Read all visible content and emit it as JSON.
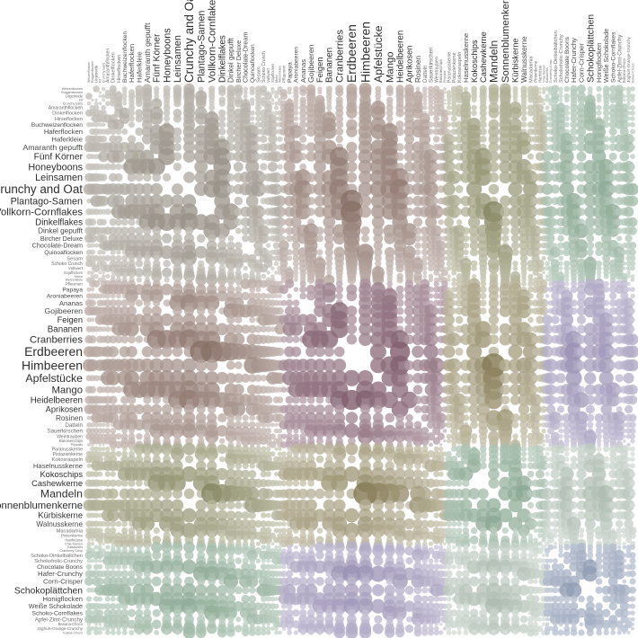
{
  "chart_data": {
    "type": "heatmap",
    "variant": "bubble-cooccurrence-matrix",
    "symmetric": true,
    "title": "",
    "xlabel": "",
    "ylabel": "",
    "axes_note": "identical ingredient list on left rows and rotated top columns; bubble size encodes co-occurrence (weight_i x weight_j); diagonal empty",
    "layout": {
      "background": "#ffffff",
      "plot_origin": [
        97,
        97
      ],
      "plot_size": 609,
      "legend": false,
      "grid": false,
      "label_color_large": "#2e2e2e",
      "label_color_medium": "#4a4a4a",
      "label_color_small": "#6e6e6e"
    },
    "category_colors": {
      "cereal": "#92887a",
      "fruit": "#7e5165",
      "nut": "#8a8a5c",
      "chocolate": "#7689ac"
    },
    "block_colors": {
      "cereal_cereal": "#92887a",
      "cereal_fruit": "#94766b",
      "cereal_nut": "#8a8a5c",
      "cereal_chocolate": "#77a183",
      "fruit_fruit": "#7e5165",
      "fruit_nut": "#978b5e",
      "fruit_chocolate": "#9488b8",
      "nut_nut": "#78a284",
      "nut_chocolate": "#a8bdac",
      "chocolate_chocolate": "#7689ac"
    },
    "ingredients": [
      {
        "label": "Weizenflocken",
        "category": "cereal",
        "weight": 3.5
      },
      {
        "label": "Roggenflocken",
        "category": "cereal",
        "weight": 3.5
      },
      {
        "label": "Urgetreide",
        "category": "cereal",
        "weight": 4.0
      },
      {
        "label": "Fit",
        "category": "cereal",
        "weight": 3.5
      },
      {
        "label": "Crunchy baby",
        "category": "cereal",
        "weight": 3.5
      },
      {
        "label": "Amaranthflocken",
        "category": "cereal",
        "weight": 5.0
      },
      {
        "label": "Dinkelflocken",
        "category": "cereal",
        "weight": 5.5
      },
      {
        "label": "Hirseflocken",
        "category": "cereal",
        "weight": 5.5
      },
      {
        "label": "Buchweizenflocken",
        "category": "cereal",
        "weight": 6.5
      },
      {
        "label": "Haferflocken",
        "category": "cereal",
        "weight": 7.5
      },
      {
        "label": "Haferkleie",
        "category": "cereal",
        "weight": 7.5
      },
      {
        "label": "Amaranth gepufft",
        "category": "cereal",
        "weight": 8.5
      },
      {
        "label": "Fünf Körner",
        "category": "cereal",
        "weight": 10.0
      },
      {
        "label": "Honeyboons",
        "category": "cereal",
        "weight": 10.5
      },
      {
        "label": "Leinsamen",
        "category": "cereal",
        "weight": 10.5
      },
      {
        "label": "Crunchy and Oat",
        "category": "cereal",
        "weight": 13.0
      },
      {
        "label": "Plantago-Samen",
        "category": "cereal",
        "weight": 10.5
      },
      {
        "label": "Vollkorn-Cornflakes",
        "category": "cereal",
        "weight": 11.0
      },
      {
        "label": "Dinkelflakes",
        "category": "cereal",
        "weight": 9.5
      },
      {
        "label": "Dinkel gepufft",
        "category": "cereal",
        "weight": 8.0
      },
      {
        "label": "Bircher Deluxe",
        "category": "cereal",
        "weight": 7.0
      },
      {
        "label": "Chocolate-Dream",
        "category": "cereal",
        "weight": 7.0
      },
      {
        "label": "Quinoaflocken",
        "category": "cereal",
        "weight": 6.5
      },
      {
        "label": "Sesam",
        "category": "cereal",
        "weight": 5.5
      },
      {
        "label": "Schoko Crunch",
        "category": "cereal",
        "weight": 5.0
      },
      {
        "label": "Vollwert",
        "category": "cereal",
        "weight": 4.5
      },
      {
        "label": "Sojaflocken",
        "category": "cereal",
        "weight": 4.0
      },
      {
        "label": "Mohn",
        "category": "cereal",
        "weight": 3.5
      },
      {
        "label": "Weizenkleie",
        "category": "cereal",
        "weight": 3.5
      },
      {
        "label": "Pflaumen",
        "category": "fruit",
        "weight": 4.5
      },
      {
        "label": "Papaya",
        "category": "fruit",
        "weight": 6.5
      },
      {
        "label": "Aroniabeeren",
        "category": "fruit",
        "weight": 6.5
      },
      {
        "label": "Ananas",
        "category": "fruit",
        "weight": 7.5
      },
      {
        "label": "Gojibeeren",
        "category": "fruit",
        "weight": 8.5
      },
      {
        "label": "Feigen",
        "category": "fruit",
        "weight": 9.0
      },
      {
        "label": "Bananen",
        "category": "fruit",
        "weight": 9.5
      },
      {
        "label": "Cranberries",
        "category": "fruit",
        "weight": 11.0
      },
      {
        "label": "Erdbeeren",
        "category": "fruit",
        "weight": 13.5
      },
      {
        "label": "Himbeeren",
        "category": "fruit",
        "weight": 13.5
      },
      {
        "label": "Apfelstücke",
        "category": "fruit",
        "weight": 12.0
      },
      {
        "label": "Mango",
        "category": "fruit",
        "weight": 11.0
      },
      {
        "label": "Heidelbeeren",
        "category": "fruit",
        "weight": 9.5
      },
      {
        "label": "Aprikosen",
        "category": "fruit",
        "weight": 9.0
      },
      {
        "label": "Rosinen",
        "category": "fruit",
        "weight": 8.0
      },
      {
        "label": "Datteln",
        "category": "fruit",
        "weight": 6.0
      },
      {
        "label": "Sauerkirschen",
        "category": "fruit",
        "weight": 6.0
      },
      {
        "label": "Weintrauben",
        "category": "fruit",
        "weight": 5.0
      },
      {
        "label": "Bananenchips",
        "category": "fruit",
        "weight": 4.0
      },
      {
        "label": "Physalis",
        "category": "fruit",
        "weight": 3.5
      },
      {
        "label": "Paranusskerne",
        "category": "nut",
        "weight": 5.0
      },
      {
        "label": "Pistazienkerne",
        "category": "nut",
        "weight": 5.0
      },
      {
        "label": "Kokosraspeln",
        "category": "nut",
        "weight": 5.5
      },
      {
        "label": "Haselnusskerne",
        "category": "nut",
        "weight": 7.5
      },
      {
        "label": "Kokoschips",
        "category": "nut",
        "weight": 9.0
      },
      {
        "label": "Cashewkerne",
        "category": "nut",
        "weight": 9.0
      },
      {
        "label": "Mandeln",
        "category": "nut",
        "weight": 12.0
      },
      {
        "label": "Sonnenblumenkerne",
        "category": "nut",
        "weight": 11.0
      },
      {
        "label": "Kürbiskerne",
        "category": "nut",
        "weight": 9.0
      },
      {
        "label": "Walnusskerne",
        "category": "nut",
        "weight": 8.0
      },
      {
        "label": "Macadamia",
        "category": "nut",
        "weight": 5.5
      },
      {
        "label": "Pinienkerne",
        "category": "nut",
        "weight": 4.5
      },
      {
        "label": "Hanfnüsse",
        "category": "nut",
        "weight": 4.0
      },
      {
        "label": "Chia-Samen",
        "category": "nut",
        "weight": 3.5
      },
      {
        "label": "Kakaonibs",
        "category": "chocolate",
        "weight": 3.5
      },
      {
        "label": "Cranberry-Crisp",
        "category": "chocolate",
        "weight": 3.5
      },
      {
        "label": "Schoko-Dinkelbällchen",
        "category": "chocolate",
        "weight": 5.5
      },
      {
        "label": "Schokoholic-Crunchy",
        "category": "chocolate",
        "weight": 5.5
      },
      {
        "label": "Chocolate Boons",
        "category": "chocolate",
        "weight": 6.5
      },
      {
        "label": "Hafer-Crunchy",
        "category": "chocolate",
        "weight": 7.5
      },
      {
        "label": "Corn-Crisper",
        "category": "chocolate",
        "weight": 7.5
      },
      {
        "label": "Schokoplättchen",
        "category": "chocolate",
        "weight": 10.0
      },
      {
        "label": "Honigflocken",
        "category": "chocolate",
        "weight": 7.5
      },
      {
        "label": "Weiße Schokolade",
        "category": "chocolate",
        "weight": 7.0
      },
      {
        "label": "Schoko-Cornflakes",
        "category": "chocolate",
        "weight": 6.5
      },
      {
        "label": "Apfel-Zimt-Crunchy",
        "category": "chocolate",
        "weight": 6.0
      },
      {
        "label": "Banana-Choco",
        "category": "chocolate",
        "weight": 4.0
      },
      {
        "label": "Joghurt-Orange-Crunchy",
        "category": "chocolate",
        "weight": 4.5
      },
      {
        "label": "Kokos-Choco",
        "category": "chocolate",
        "weight": 3.5
      }
    ]
  }
}
